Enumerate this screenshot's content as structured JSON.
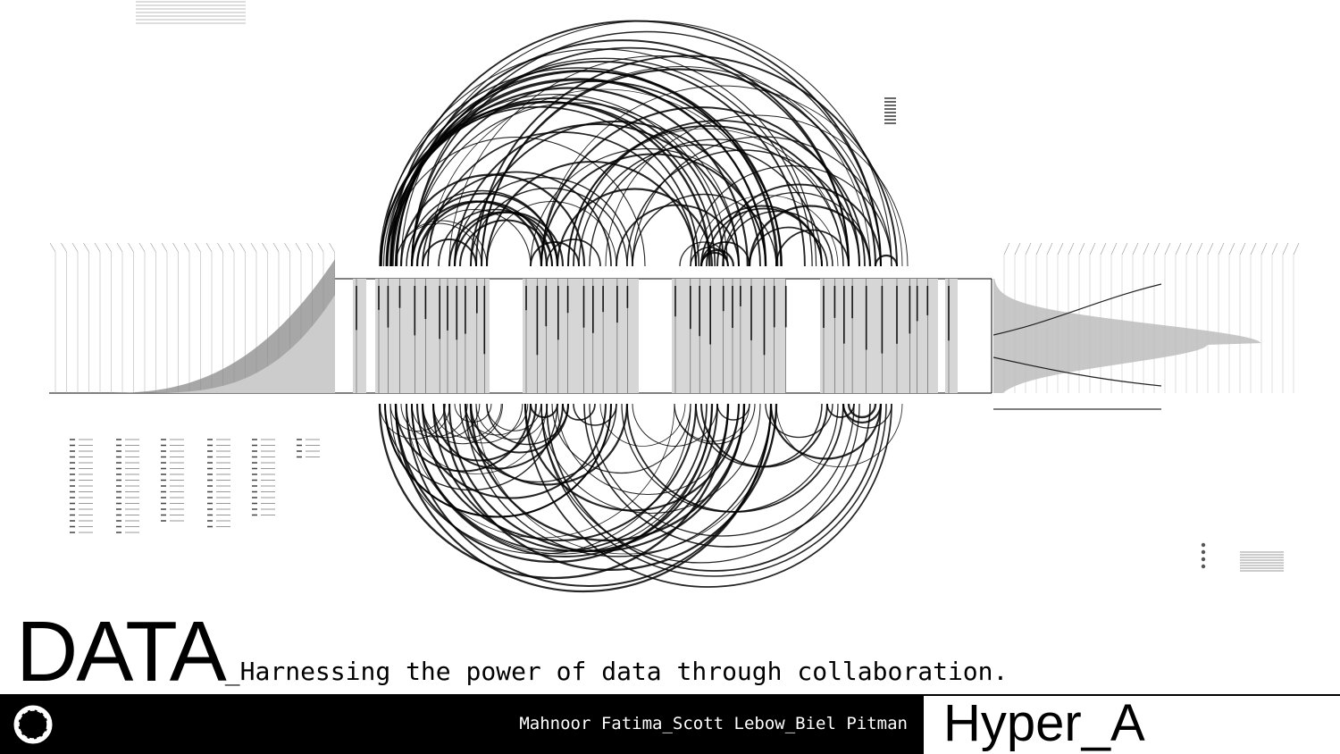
{
  "poster": {
    "title": "DATA",
    "subtitle": "_Harnessing the power of data through collaboration.",
    "authors": "Mahnoor Fatima_Scott Lebow_Biel Pitman",
    "brand": "Hyper_A"
  },
  "colors": {
    "background": "#ffffff",
    "ink": "#000000",
    "band_gray": "#d4d4d4",
    "footer_bar": "#000000"
  },
  "icons": [
    "circular-brush-logo-icon"
  ]
}
